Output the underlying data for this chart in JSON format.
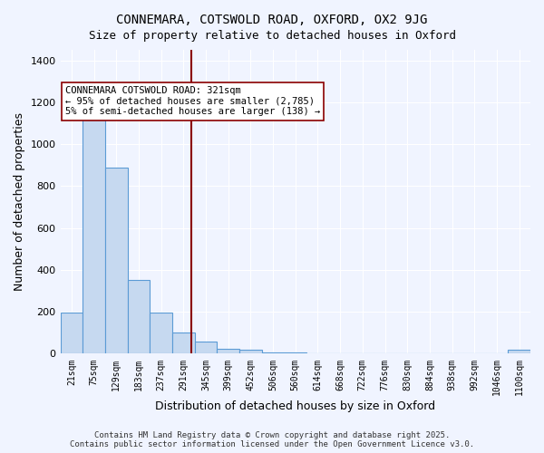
{
  "title": "CONNEMARA, COTSWOLD ROAD, OXFORD, OX2 9JG",
  "subtitle": "Size of property relative to detached houses in Oxford",
  "xlabel": "Distribution of detached houses by size in Oxford",
  "ylabel": "Number of detached properties",
  "categories": [
    "21sqm",
    "75sqm",
    "129sqm",
    "183sqm",
    "237sqm",
    "291sqm",
    "345sqm",
    "399sqm",
    "452sqm",
    "506sqm",
    "560sqm",
    "614sqm",
    "668sqm",
    "722sqm",
    "776sqm",
    "830sqm",
    "884sqm",
    "938sqm",
    "992sqm",
    "1046sqm",
    "1100sqm"
  ],
  "bar_values": [
    195,
    1130,
    890,
    350,
    195,
    100,
    60,
    25,
    18,
    8,
    5,
    3,
    2,
    1,
    1,
    1,
    0,
    0,
    0,
    0,
    20
  ],
  "bar_color": "#c6d9f0",
  "bar_edge_color": "#5b9bd5",
  "bg_color": "#f0f4ff",
  "grid_color": "#ffffff",
  "vline_x": 5.37,
  "vline_color": "#8b0000",
  "annotation_text": "CONNEMARA COTSWOLD ROAD: 321sqm\n← 95% of detached houses are smaller (2,785)\n5% of semi-detached houses are larger (138) →",
  "annotation_box_color": "#ffffff",
  "annotation_box_edge": "#8b0000",
  "footer_text": "Contains HM Land Registry data © Crown copyright and database right 2025.\nContains public sector information licensed under the Open Government Licence v3.0.",
  "ylim": [
    0,
    1450
  ],
  "yticks": [
    0,
    200,
    400,
    600,
    800,
    1000,
    1200,
    1400
  ],
  "figsize": [
    6.0,
    5.0
  ],
  "dpi": 100
}
